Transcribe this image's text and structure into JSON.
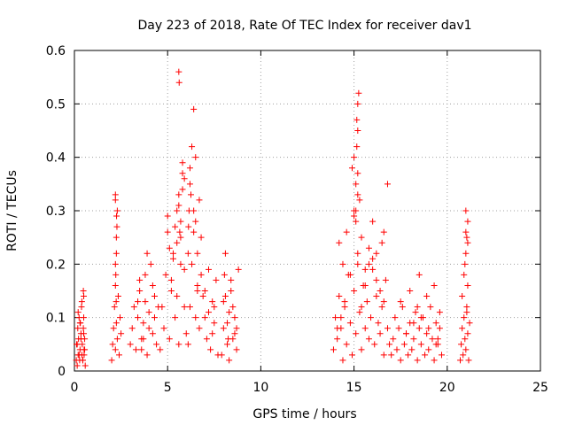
{
  "chart_data": {
    "type": "scatter",
    "title": "Day 223 of 2018, Rate Of TEC Index for receiver dav1",
    "xlabel": "GPS time / hours",
    "ylabel": "ROTI / TECUs",
    "xlim": [
      0,
      25
    ],
    "ylim": [
      0,
      0.6
    ],
    "xticks": [
      0,
      5,
      10,
      15,
      20,
      25
    ],
    "yticks": [
      0,
      0.1,
      0.2,
      0.3,
      0.4,
      0.5,
      0.6
    ],
    "xtick_labels": [
      "0",
      "5",
      "10",
      "15",
      "20",
      "25"
    ],
    "ytick_labels": [
      "0",
      "0.1",
      "0.2",
      "0.3",
      "0.4",
      "0.5",
      "0.6"
    ],
    "grid": true,
    "marker": "+",
    "color": "#ff0000",
    "series": [
      {
        "x": [
          0.1,
          0.12,
          0.15,
          0.18,
          0.2,
          0.22,
          0.25,
          0.28,
          0.3,
          0.32,
          0.35,
          0.38,
          0.4,
          0.42,
          0.45,
          0.48,
          0.5,
          0.52,
          0.55,
          0.58,
          0.2,
          0.3,
          0.4,
          0.5,
          0.55,
          0.45,
          0.35,
          0.25,
          0.15,
          0.5,
          0.52,
          0.48,
          2.0,
          2.05,
          2.1,
          2.15,
          2.2,
          2.25,
          2.3,
          2.35,
          2.4,
          2.45,
          2.5,
          2.2,
          2.25,
          2.2,
          2.3,
          2.25,
          2.22,
          2.28,
          2.2,
          2.24,
          2.26,
          2.2,
          3.0,
          3.1,
          3.2,
          3.3,
          3.4,
          3.5,
          3.6,
          3.7,
          3.8,
          3.9,
          4.0,
          4.1,
          4.2,
          4.3,
          4.4,
          4.5,
          3.5,
          3.6,
          3.8,
          3.9,
          4.0,
          4.2,
          4.3,
          3.4,
          3.7,
          4.6,
          4.7,
          4.8,
          4.9,
          5.0,
          5.1,
          5.2,
          5.3,
          5.4,
          5.5,
          5.6,
          5.7,
          5.8,
          5.9,
          6.0,
          5.0,
          5.1,
          5.2,
          5.4,
          5.5,
          5.6,
          5.7,
          5.8,
          5.9,
          5.6,
          5.62,
          5.9,
          5.8,
          5.7,
          5.5,
          5.3,
          5.6,
          5.65,
          6.1,
          6.2,
          6.3,
          6.4,
          6.5,
          6.6,
          6.7,
          6.8,
          6.9,
          7.0,
          7.1,
          7.2,
          7.3,
          7.4,
          7.5,
          7.6,
          7.7,
          6.2,
          6.3,
          6.4,
          6.5,
          6.6,
          6.7,
          6.8,
          7.0,
          7.2,
          7.4,
          6.1,
          6.12,
          6.2,
          6.25,
          6.4,
          6.5,
          6.6,
          7.5,
          6.15,
          7.9,
          8.0,
          8.1,
          8.2,
          8.3,
          8.4,
          8.5,
          8.6,
          8.7,
          8.8,
          8.0,
          8.2,
          8.4,
          8.6,
          8.1,
          8.3,
          8.5,
          8.7,
          8.05,
          8.25,
          13.9,
          14.0,
          14.1,
          14.2,
          14.3,
          14.4,
          14.5,
          14.6,
          14.7,
          14.8,
          14.9,
          15.0,
          15.1,
          15.2,
          15.3,
          15.4,
          15.5,
          15.6,
          15.7,
          15.8,
          15.9,
          16.0,
          16.1,
          16.2,
          16.3,
          16.4,
          16.5,
          16.6,
          16.7,
          16.8,
          16.9,
          14.2,
          14.4,
          14.6,
          14.8,
          15.0,
          15.2,
          15.4,
          15.6,
          15.8,
          16.0,
          16.2,
          16.4,
          16.6,
          14.9,
          15.0,
          15.1,
          15.2,
          15.15,
          15.2,
          15.25,
          15.1,
          15.2,
          15.15,
          15.2,
          16.8,
          16.6,
          16.5,
          16.0,
          16.2,
          15.8,
          15.6,
          15.4,
          14.5,
          14.3,
          14.1,
          15.0,
          15.1,
          15.3,
          17.0,
          17.1,
          17.2,
          17.3,
          17.4,
          17.5,
          17.6,
          17.7,
          17.8,
          17.9,
          18.0,
          18.1,
          18.2,
          18.3,
          18.4,
          18.5,
          18.6,
          18.7,
          18.8,
          18.9,
          19.0,
          19.1,
          19.2,
          19.3,
          19.4,
          19.5,
          19.6,
          19.7,
          17.5,
          18.0,
          18.4,
          18.9,
          19.3,
          19.6,
          17.8,
          18.2,
          18.6,
          19.0,
          19.4,
          18.5,
          19.5,
          20.7,
          20.75,
          20.8,
          20.85,
          20.9,
          20.95,
          21.0,
          21.05,
          21.1,
          21.15,
          21.2,
          20.8,
          20.9,
          21.0,
          21.05,
          21.1,
          21.0,
          20.95,
          21.1,
          21.05,
          21.0,
          21.1
        ],
        "y": [
          0.02,
          0.05,
          0.01,
          0.08,
          0.03,
          0.06,
          0.1,
          0.02,
          0.04,
          0.09,
          0.07,
          0.12,
          0.03,
          0.05,
          0.02,
          0.08,
          0.14,
          0.04,
          0.06,
          0.01,
          0.11,
          0.09,
          0.13,
          0.1,
          0.04,
          0.02,
          0.06,
          0.03,
          0.05,
          0.07,
          0.03,
          0.15,
          0.02,
          0.05,
          0.08,
          0.12,
          0.04,
          0.09,
          0.06,
          0.14,
          0.03,
          0.1,
          0.07,
          0.2,
          0.25,
          0.32,
          0.3,
          0.22,
          0.18,
          0.27,
          0.16,
          0.13,
          0.29,
          0.33,
          0.05,
          0.08,
          0.12,
          0.04,
          0.1,
          0.15,
          0.06,
          0.09,
          0.18,
          0.03,
          0.11,
          0.2,
          0.07,
          0.14,
          0.05,
          0.12,
          0.17,
          0.04,
          0.13,
          0.22,
          0.08,
          0.16,
          0.1,
          0.13,
          0.06,
          0.04,
          0.12,
          0.08,
          0.18,
          0.26,
          0.06,
          0.15,
          0.22,
          0.1,
          0.3,
          0.05,
          0.2,
          0.34,
          0.12,
          0.07,
          0.29,
          0.23,
          0.17,
          0.27,
          0.14,
          0.31,
          0.25,
          0.37,
          0.19,
          0.56,
          0.54,
          0.36,
          0.39,
          0.28,
          0.24,
          0.21,
          0.33,
          0.26,
          0.05,
          0.12,
          0.2,
          0.3,
          0.4,
          0.16,
          0.08,
          0.25,
          0.14,
          0.1,
          0.06,
          0.19,
          0.04,
          0.13,
          0.09,
          0.17,
          0.03,
          0.35,
          0.42,
          0.49,
          0.28,
          0.22,
          0.32,
          0.18,
          0.15,
          0.11,
          0.07,
          0.22,
          0.27,
          0.38,
          0.33,
          0.26,
          0.1,
          0.15,
          0.12,
          0.3,
          0.03,
          0.08,
          0.14,
          0.05,
          0.11,
          0.17,
          0.06,
          0.1,
          0.04,
          0.19,
          0.13,
          0.09,
          0.15,
          0.07,
          0.22,
          0.02,
          0.12,
          0.08,
          0.18,
          0.06,
          0.04,
          0.1,
          0.06,
          0.14,
          0.08,
          0.02,
          0.12,
          0.05,
          0.18,
          0.09,
          0.03,
          0.15,
          0.07,
          0.2,
          0.11,
          0.04,
          0.16,
          0.08,
          0.13,
          0.06,
          0.1,
          0.19,
          0.05,
          0.14,
          0.09,
          0.07,
          0.12,
          0.03,
          0.17,
          0.08,
          0.05,
          0.24,
          0.2,
          0.26,
          0.18,
          0.29,
          0.22,
          0.25,
          0.19,
          0.23,
          0.21,
          0.17,
          0.15,
          0.13,
          0.38,
          0.4,
          0.35,
          0.45,
          0.47,
          0.5,
          0.52,
          0.3,
          0.33,
          0.42,
          0.37,
          0.35,
          0.26,
          0.24,
          0.28,
          0.22,
          0.2,
          0.16,
          0.12,
          0.13,
          0.1,
          0.08,
          0.3,
          0.28,
          0.32,
          0.03,
          0.06,
          0.1,
          0.04,
          0.08,
          0.02,
          0.12,
          0.05,
          0.07,
          0.03,
          0.09,
          0.04,
          0.06,
          0.11,
          0.02,
          0.08,
          0.05,
          0.1,
          0.03,
          0.07,
          0.04,
          0.12,
          0.06,
          0.02,
          0.09,
          0.05,
          0.08,
          0.03,
          0.13,
          0.15,
          0.12,
          0.14,
          0.16,
          0.11,
          0.07,
          0.09,
          0.1,
          0.08,
          0.05,
          0.18,
          0.06,
          0.02,
          0.05,
          0.08,
          0.03,
          0.1,
          0.06,
          0.04,
          0.12,
          0.07,
          0.02,
          0.09,
          0.14,
          0.18,
          0.22,
          0.25,
          0.28,
          0.3,
          0.2,
          0.16,
          0.11,
          0.26,
          0.24
        ]
      }
    ]
  }
}
